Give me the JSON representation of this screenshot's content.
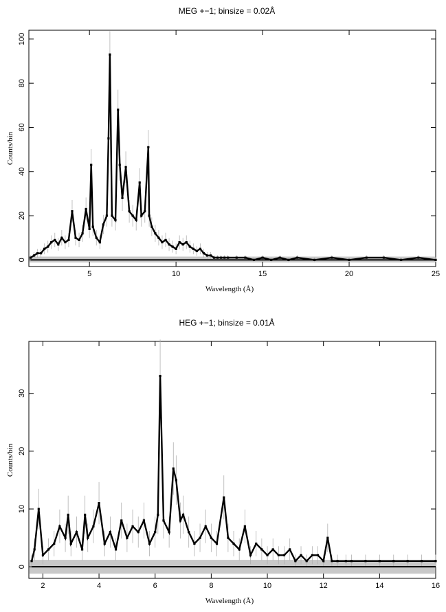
{
  "chart_data": [
    {
      "type": "line",
      "title": "MEG +−1; binsize = 0.02Å",
      "xlabel": "Wavelength (Å)",
      "ylabel": "Counts/bin",
      "xlim": [
        1.5,
        25
      ],
      "ylim": [
        -3,
        104
      ],
      "xticks": [
        5,
        10,
        15,
        20,
        25
      ],
      "yticks": [
        0,
        20,
        40,
        60,
        80,
        100
      ],
      "grid": false,
      "x": [
        1.6,
        1.8,
        2.0,
        2.2,
        2.4,
        2.6,
        2.8,
        3.0,
        3.2,
        3.4,
        3.6,
        3.8,
        4.0,
        4.2,
        4.4,
        4.6,
        4.8,
        5.0,
        5.1,
        5.2,
        5.4,
        5.6,
        5.8,
        6.0,
        6.1,
        6.18,
        6.3,
        6.5,
        6.65,
        6.75,
        6.9,
        7.1,
        7.3,
        7.5,
        7.7,
        7.9,
        8.0,
        8.2,
        8.4,
        8.45,
        8.6,
        8.8,
        9.0,
        9.2,
        9.4,
        9.6,
        9.8,
        10.0,
        10.2,
        10.4,
        10.6,
        10.8,
        11.0,
        11.2,
        11.4,
        11.6,
        11.8,
        12.0,
        12.2,
        12.4,
        12.6,
        12.8,
        13.0,
        13.5,
        14.0,
        14.5,
        15.0,
        15.5,
        16.0,
        16.5,
        17.0,
        18.0,
        19.0,
        20.0,
        21.0,
        22.0,
        23.0,
        24.0,
        25.0
      ],
      "values": [
        1,
        2,
        3,
        3,
        5,
        6,
        8,
        9,
        7,
        10,
        8,
        9,
        22,
        10,
        9,
        12,
        23,
        14,
        43,
        15,
        10,
        8,
        16,
        20,
        55,
        93,
        20,
        18,
        68,
        43,
        28,
        42,
        22,
        20,
        18,
        35,
        20,
        22,
        51,
        20,
        15,
        12,
        10,
        8,
        9,
        7,
        6,
        5,
        8,
        7,
        8,
        6,
        5,
        4,
        5,
        3,
        2,
        2,
        1,
        1,
        1,
        1,
        1,
        1,
        1,
        0,
        1,
        0,
        1,
        0,
        1,
        0,
        1,
        0,
        1,
        1,
        0,
        1,
        0
      ]
    },
    {
      "type": "line",
      "title": "HEG +−1; binsize = 0.01Å",
      "xlabel": "Wavelength (Å)",
      "ylabel": "Counts/bin",
      "xlim": [
        1.5,
        16
      ],
      "ylim": [
        -2,
        39
      ],
      "xticks": [
        2,
        4,
        6,
        8,
        10,
        12,
        14,
        16
      ],
      "yticks": [
        0,
        10,
        20,
        30
      ],
      "grid": false,
      "x": [
        1.6,
        1.7,
        1.85,
        2.0,
        2.2,
        2.4,
        2.6,
        2.8,
        2.9,
        3.0,
        3.2,
        3.4,
        3.5,
        3.6,
        3.8,
        4.0,
        4.2,
        4.4,
        4.6,
        4.8,
        5.0,
        5.2,
        5.4,
        5.6,
        5.8,
        6.0,
        6.1,
        6.18,
        6.3,
        6.5,
        6.65,
        6.75,
        6.9,
        7.0,
        7.2,
        7.4,
        7.6,
        7.8,
        8.0,
        8.2,
        8.45,
        8.6,
        8.8,
        9.0,
        9.2,
        9.4,
        9.6,
        9.8,
        10.0,
        10.2,
        10.4,
        10.6,
        10.8,
        11.0,
        11.2,
        11.4,
        11.6,
        11.8,
        12.0,
        12.15,
        12.3,
        12.5,
        12.8,
        13.0,
        13.5,
        14.0,
        14.5,
        15.0,
        15.5,
        16.0
      ],
      "values": [
        1,
        3,
        10,
        2,
        3,
        4,
        7,
        5,
        9,
        4,
        6,
        3,
        9,
        5,
        7,
        11,
        4,
        6,
        3,
        8,
        5,
        7,
        6,
        8,
        4,
        6,
        9,
        33,
        8,
        6,
        17,
        15,
        8,
        9,
        6,
        4,
        5,
        7,
        5,
        4,
        12,
        5,
        4,
        3,
        7,
        2,
        4,
        3,
        2,
        3,
        2,
        2,
        3,
        1,
        2,
        1,
        2,
        2,
        1,
        5,
        1,
        1,
        1,
        1,
        1,
        1,
        1,
        1,
        1,
        1
      ]
    }
  ]
}
